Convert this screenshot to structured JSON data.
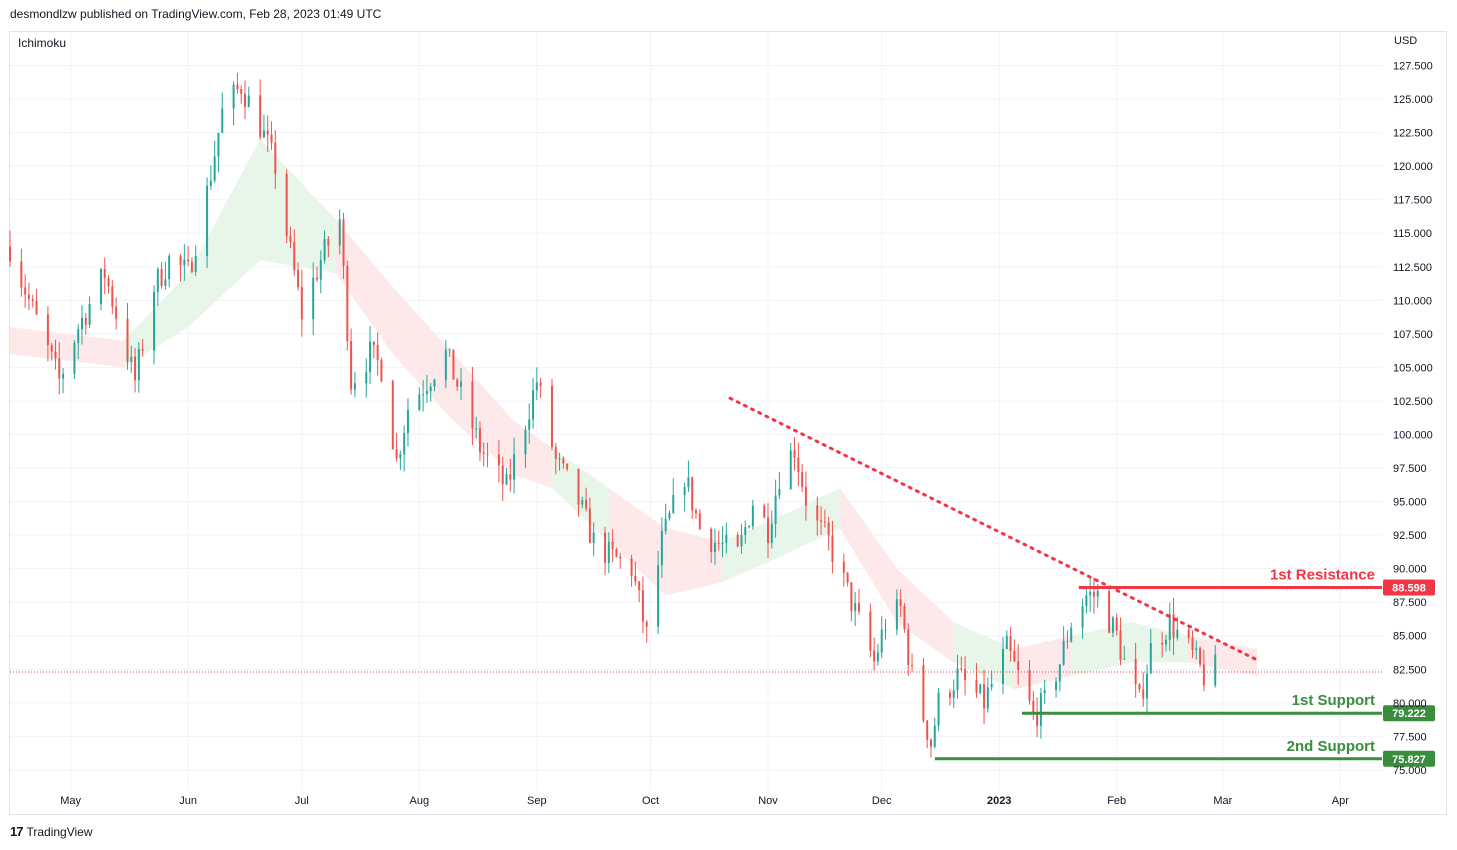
{
  "header": {
    "attribution": "desmondlzw published on TradingView.com, Feb 28, 2023 01:49 UTC"
  },
  "indicator": {
    "name": "Ichimoku"
  },
  "footer": {
    "brand": "TradingView",
    "logo_text": "17"
  },
  "colors": {
    "up": "#26a69a",
    "down": "#ef5350",
    "resistance": "#f23645",
    "support": "#388e3c",
    "cloud_green": "#e8f5e9",
    "cloud_red": "#fde9e9",
    "grid": "#f0f3fa",
    "dotted": "#f23645"
  },
  "chart_data": {
    "type": "candlestick",
    "currency": "USD",
    "y_ticks": [
      "127.500",
      "125.000",
      "122.500",
      "120.000",
      "117.500",
      "115.000",
      "112.500",
      "110.000",
      "107.500",
      "105.000",
      "102.500",
      "100.000",
      "97.500",
      "95.000",
      "92.500",
      "90.000",
      "87.500",
      "85.000",
      "82.500",
      "80.000",
      "77.500",
      "75.000"
    ],
    "y_tick_values": [
      127.5,
      125,
      122.5,
      120,
      117.5,
      115,
      112.5,
      110,
      107.5,
      105,
      102.5,
      100,
      97.5,
      95,
      92.5,
      90,
      87.5,
      85,
      82.5,
      80,
      77.5,
      75
    ],
    "ylim": [
      73.5,
      130.0
    ],
    "x_ticks": [
      {
        "label": "May",
        "date": "2022-05-01",
        "bold": false
      },
      {
        "label": "Jun",
        "date": "2022-06-01",
        "bold": false
      },
      {
        "label": "Jul",
        "date": "2022-07-01",
        "bold": false
      },
      {
        "label": "Aug",
        "date": "2022-08-01",
        "bold": false
      },
      {
        "label": "Sep",
        "date": "2022-09-01",
        "bold": false
      },
      {
        "label": "Oct",
        "date": "2022-10-01",
        "bold": false
      },
      {
        "label": "Nov",
        "date": "2022-11-01",
        "bold": false
      },
      {
        "label": "Dec",
        "date": "2022-12-01",
        "bold": false
      },
      {
        "label": "2023",
        "date": "2023-01-01",
        "bold": true
      },
      {
        "label": "Feb",
        "date": "2023-02-01",
        "bold": false
      },
      {
        "label": "Mar",
        "date": "2023-03-01",
        "bold": false
      },
      {
        "label": "Apr",
        "date": "2023-04-01",
        "bold": false
      }
    ],
    "xlim": [
      "2022-04-15",
      "2023-04-12"
    ],
    "last_date": "2023-02-27",
    "price_path": [
      [
        "2022-04-15",
        114
      ],
      [
        "2022-04-20",
        110
      ],
      [
        "2022-04-28",
        104
      ],
      [
        "2022-05-03",
        108
      ],
      [
        "2022-05-10",
        112
      ],
      [
        "2022-05-18",
        104
      ],
      [
        "2022-05-23",
        111
      ],
      [
        "2022-05-27",
        113
      ],
      [
        "2022-06-01",
        112
      ],
      [
        "2022-06-06",
        118
      ],
      [
        "2022-06-10",
        124
      ],
      [
        "2022-06-15",
        126
      ],
      [
        "2022-06-20",
        123
      ],
      [
        "2022-06-24",
        120
      ],
      [
        "2022-06-27",
        115
      ],
      [
        "2022-07-01",
        109
      ],
      [
        "2022-07-06",
        113
      ],
      [
        "2022-07-11",
        116
      ],
      [
        "2022-07-14",
        104
      ],
      [
        "2022-07-19",
        106
      ],
      [
        "2022-07-22",
        105
      ],
      [
        "2022-07-26",
        98
      ],
      [
        "2022-07-29",
        102
      ],
      [
        "2022-08-03",
        104
      ],
      [
        "2022-08-08",
        106
      ],
      [
        "2022-08-12",
        103
      ],
      [
        "2022-08-17",
        99
      ],
      [
        "2022-08-24",
        96
      ],
      [
        "2022-08-29",
        101
      ],
      [
        "2022-09-01",
        104
      ],
      [
        "2022-09-06",
        98
      ],
      [
        "2022-09-12",
        95
      ],
      [
        "2022-09-16",
        92
      ],
      [
        "2022-09-20",
        91
      ],
      [
        "2022-09-26",
        90
      ],
      [
        "2022-09-30",
        85
      ],
      [
        "2022-10-04",
        92
      ],
      [
        "2022-10-10",
        97
      ],
      [
        "2022-10-14",
        93
      ],
      [
        "2022-10-18",
        92
      ],
      [
        "2022-10-24",
        91
      ],
      [
        "2022-10-28",
        95
      ],
      [
        "2022-11-01",
        93
      ],
      [
        "2022-11-04",
        97
      ],
      [
        "2022-11-08",
        99
      ],
      [
        "2022-11-12",
        94
      ],
      [
        "2022-11-17",
        92
      ],
      [
        "2022-11-21",
        89
      ],
      [
        "2022-11-25",
        86
      ],
      [
        "2022-11-29",
        83
      ],
      [
        "2022-12-02",
        86
      ],
      [
        "2022-12-06",
        87
      ],
      [
        "2022-12-09",
        82
      ],
      [
        "2022-12-12",
        79
      ],
      [
        "2022-12-14",
        77
      ],
      [
        "2022-12-16",
        80
      ],
      [
        "2022-12-21",
        82
      ],
      [
        "2022-12-28",
        80
      ],
      [
        "2023-01-03",
        84
      ],
      [
        "2023-01-06",
        82
      ],
      [
        "2023-01-10",
        79
      ],
      [
        "2023-01-13",
        80
      ],
      [
        "2023-01-17",
        83
      ],
      [
        "2023-01-20",
        86
      ],
      [
        "2023-01-24",
        88
      ],
      [
        "2023-01-27",
        88
      ],
      [
        "2023-02-01",
        85
      ],
      [
        "2023-02-04",
        82
      ],
      [
        "2023-02-07",
        80
      ],
      [
        "2023-02-10",
        84
      ],
      [
        "2023-02-15",
        86
      ],
      [
        "2023-02-20",
        84
      ],
      [
        "2023-02-24",
        82
      ],
      [
        "2023-02-27",
        82.5
      ]
    ],
    "cloud_path": [
      [
        "2022-04-15",
        108,
        106,
        "red"
      ],
      [
        "2022-05-15",
        107,
        105,
        "green"
      ],
      [
        "2022-06-01",
        112,
        108,
        "green"
      ],
      [
        "2022-06-20",
        122,
        113,
        "green"
      ],
      [
        "2022-07-10",
        116,
        112,
        "red"
      ],
      [
        "2022-07-25",
        111,
        106,
        "red"
      ],
      [
        "2022-08-10",
        106,
        101,
        "red"
      ],
      [
        "2022-08-26",
        101,
        97,
        "red"
      ],
      [
        "2022-09-05",
        99,
        96,
        "green"
      ],
      [
        "2022-09-20",
        96,
        92,
        "red"
      ],
      [
        "2022-10-05",
        93,
        88,
        "red"
      ],
      [
        "2022-10-20",
        92,
        89,
        "green"
      ],
      [
        "2022-11-05",
        94,
        91,
        "green"
      ],
      [
        "2022-11-20",
        96,
        93,
        "red"
      ],
      [
        "2022-12-05",
        90,
        86,
        "red"
      ],
      [
        "2022-12-20",
        86,
        83,
        "green"
      ],
      [
        "2023-01-05",
        84,
        81,
        "red"
      ],
      [
        "2023-01-20",
        85,
        82,
        "green"
      ],
      [
        "2023-02-05",
        86,
        83,
        "green"
      ],
      [
        "2023-02-20",
        85,
        83,
        "red"
      ],
      [
        "2023-03-10",
        84,
        82,
        "red"
      ]
    ],
    "current_price": 82.3,
    "trendline": {
      "start": [
        "2022-10-22",
        102.7
      ],
      "end": [
        "2023-03-10",
        83.2
      ]
    },
    "levels": [
      {
        "name": "1st Resistance",
        "value": "88.598",
        "price": 88.598,
        "kind": "resistance",
        "start": "2023-01-22"
      },
      {
        "name": "1st Support",
        "value": "79.222",
        "price": 79.222,
        "kind": "support",
        "start": "2023-01-07"
      },
      {
        "name": "2nd Support",
        "value": "75.827",
        "price": 75.827,
        "kind": "support",
        "start": "2022-12-15"
      }
    ]
  }
}
